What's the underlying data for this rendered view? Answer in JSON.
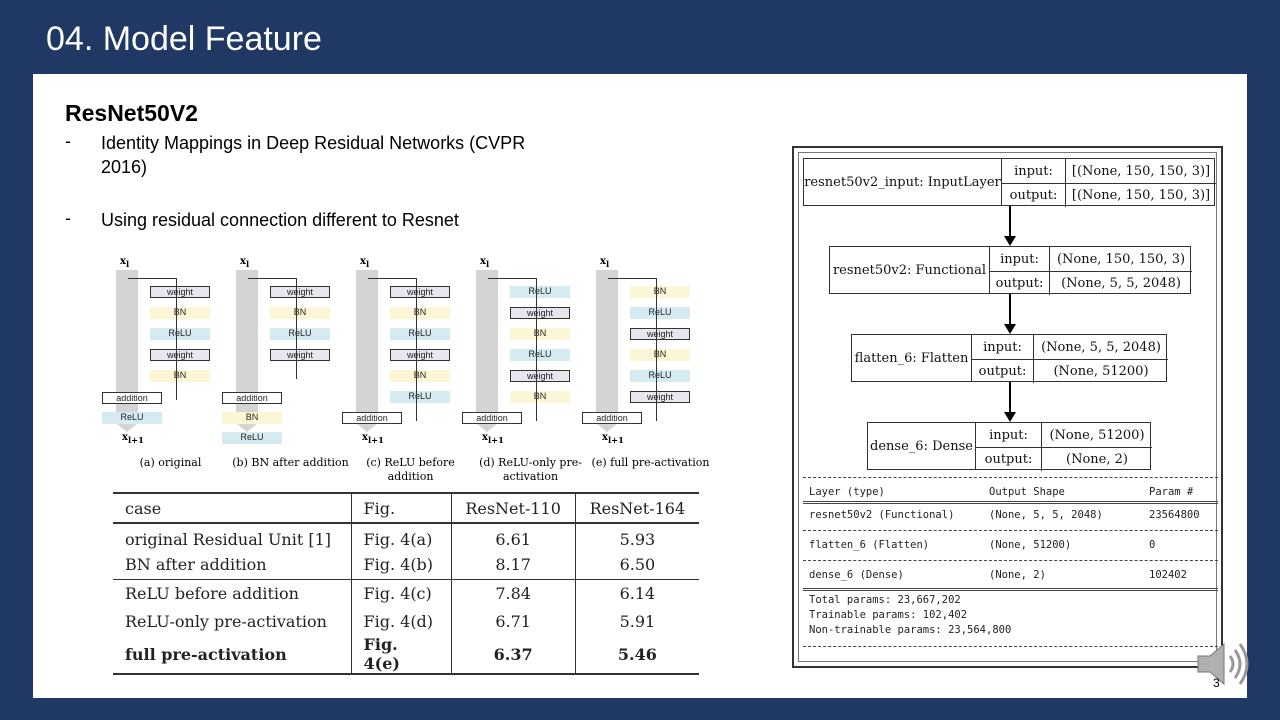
{
  "slide": {
    "title": "04. Model Feature",
    "page_number": "3"
  },
  "left": {
    "heading": "ResNet50V2",
    "bullets": [
      {
        "dash": "-",
        "text": "Identity Mappings in Deep Residual Networks (CVPR 2016)"
      },
      {
        "dash": "-",
        "text": "Using residual connection different to Resnet"
      }
    ]
  },
  "figure": {
    "x_top": "x",
    "x_top_sub": "l",
    "x_bottom": "x",
    "x_bottom_sub": "l+1",
    "units": [
      {
        "caption": "(a) original",
        "blocks": [
          "weight",
          "BN",
          "ReLU",
          "weight",
          "BN"
        ],
        "after": [
          "addition",
          "ReLU"
        ]
      },
      {
        "caption": "(b) BN after addition",
        "blocks": [
          "weight",
          "BN",
          "ReLU",
          "weight"
        ],
        "after": [
          "addition",
          "BN",
          "ReLU"
        ]
      },
      {
        "caption": "(c) ReLU before addition",
        "blocks": [
          "weight",
          "BN",
          "ReLU",
          "weight",
          "BN",
          "ReLU"
        ],
        "after": [
          "addition"
        ]
      },
      {
        "caption": "(d) ReLU-only pre-activation",
        "blocks": [
          "ReLU",
          "weight",
          "BN",
          "ReLU",
          "weight",
          "BN"
        ],
        "after": [
          "addition"
        ]
      },
      {
        "caption": "(e) full pre-activation",
        "blocks": [
          "BN",
          "ReLU",
          "weight",
          "BN",
          "ReLU",
          "weight"
        ],
        "after": [
          "addition"
        ]
      }
    ]
  },
  "table": {
    "headers": [
      "case",
      "Fig.",
      "ResNet-110",
      "ResNet-164"
    ],
    "rows": [
      [
        "original Residual Unit [1]",
        "Fig. 4(a)",
        "6.61",
        "5.93"
      ],
      [
        "BN after addition",
        "Fig. 4(b)",
        "8.17",
        "6.50"
      ],
      [
        "ReLU before addition",
        "Fig. 4(c)",
        "7.84",
        "6.14"
      ],
      [
        "ReLU-only pre-activation",
        "Fig. 4(d)",
        "6.71",
        "5.91"
      ],
      [
        "full pre-activation",
        "Fig. 4(e)",
        "6.37",
        "5.46"
      ]
    ]
  },
  "model": {
    "nodes": [
      {
        "name": "resnet50v2_input: InputLayer",
        "input_label": "input:",
        "input": "[(None, 150, 150, 3)]",
        "output_label": "output:",
        "output": "[(None, 150, 150, 3)]"
      },
      {
        "name": "resnet50v2: Functional",
        "input_label": "input:",
        "input": "(None, 150, 150, 3)",
        "output_label": "output:",
        "output": "(None, 5, 5, 2048)"
      },
      {
        "name": "flatten_6: Flatten",
        "input_label": "input:",
        "input": "(None, 5, 5, 2048)",
        "output_label": "output:",
        "output": "(None, 51200)"
      },
      {
        "name": "dense_6: Dense",
        "input_label": "input:",
        "input": "(None, 51200)",
        "output_label": "output:",
        "output": "(None, 2)"
      }
    ],
    "summary": {
      "header": [
        "Layer (type)",
        "Output Shape",
        "Param #"
      ],
      "rows": [
        [
          "resnet50v2 (Functional)",
          "(None, 5, 5, 2048)",
          "23564800"
        ],
        [
          "flatten_6 (Flatten)",
          "(None, 51200)",
          "0"
        ],
        [
          "dense_6 (Dense)",
          "(None, 2)",
          "102402"
        ]
      ],
      "totals": [
        "Total params: 23,667,202",
        "Trainable params: 102,402",
        "Non-trainable params: 23,564,800"
      ]
    }
  },
  "icons": {
    "speaker": "speaker-icon"
  }
}
